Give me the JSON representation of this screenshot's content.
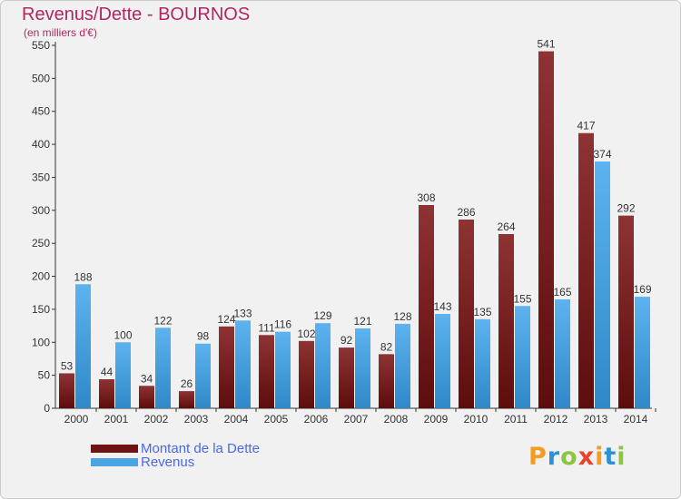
{
  "title": "Revenus/Dette - BOURNOS",
  "subtitle": "(en milliers d'€)",
  "logo": {
    "text": "Proxiti",
    "letters": [
      "P",
      "r",
      "o",
      "x",
      "i",
      "t",
      "i"
    ],
    "colors": [
      "#f39c1e",
      "#2d8fd6",
      "#8cc63f",
      "#e8432e",
      "#f39c1e",
      "#2d8fd6",
      "#8cc63f"
    ]
  },
  "chart_data": {
    "type": "bar",
    "title": "Revenus/Dette - BOURNOS",
    "subtitle": "(en milliers d'€)",
    "categories": [
      "2000",
      "2001",
      "2002",
      "2003",
      "2004",
      "2005",
      "2006",
      "2007",
      "2008",
      "2009",
      "2010",
      "2011",
      "2012",
      "2013",
      "2014"
    ],
    "series": [
      {
        "name": "Montant de la Dette",
        "color": "#7a1a1a",
        "values": [
          53,
          44,
          34,
          26,
          124,
          111,
          102,
          92,
          82,
          308,
          286,
          264,
          541,
          417,
          292
        ]
      },
      {
        "name": "Revenus",
        "color": "#4aa3e3",
        "values": [
          188,
          100,
          122,
          98,
          133,
          116,
          129,
          121,
          128,
          143,
          135,
          155,
          165,
          374,
          169
        ]
      }
    ],
    "ylim": [
      0,
      550
    ],
    "yticks": [
      0,
      50,
      100,
      150,
      200,
      250,
      300,
      350,
      400,
      450,
      500,
      550
    ],
    "grid": false,
    "legend": "bottom-left",
    "data_labels": true
  }
}
